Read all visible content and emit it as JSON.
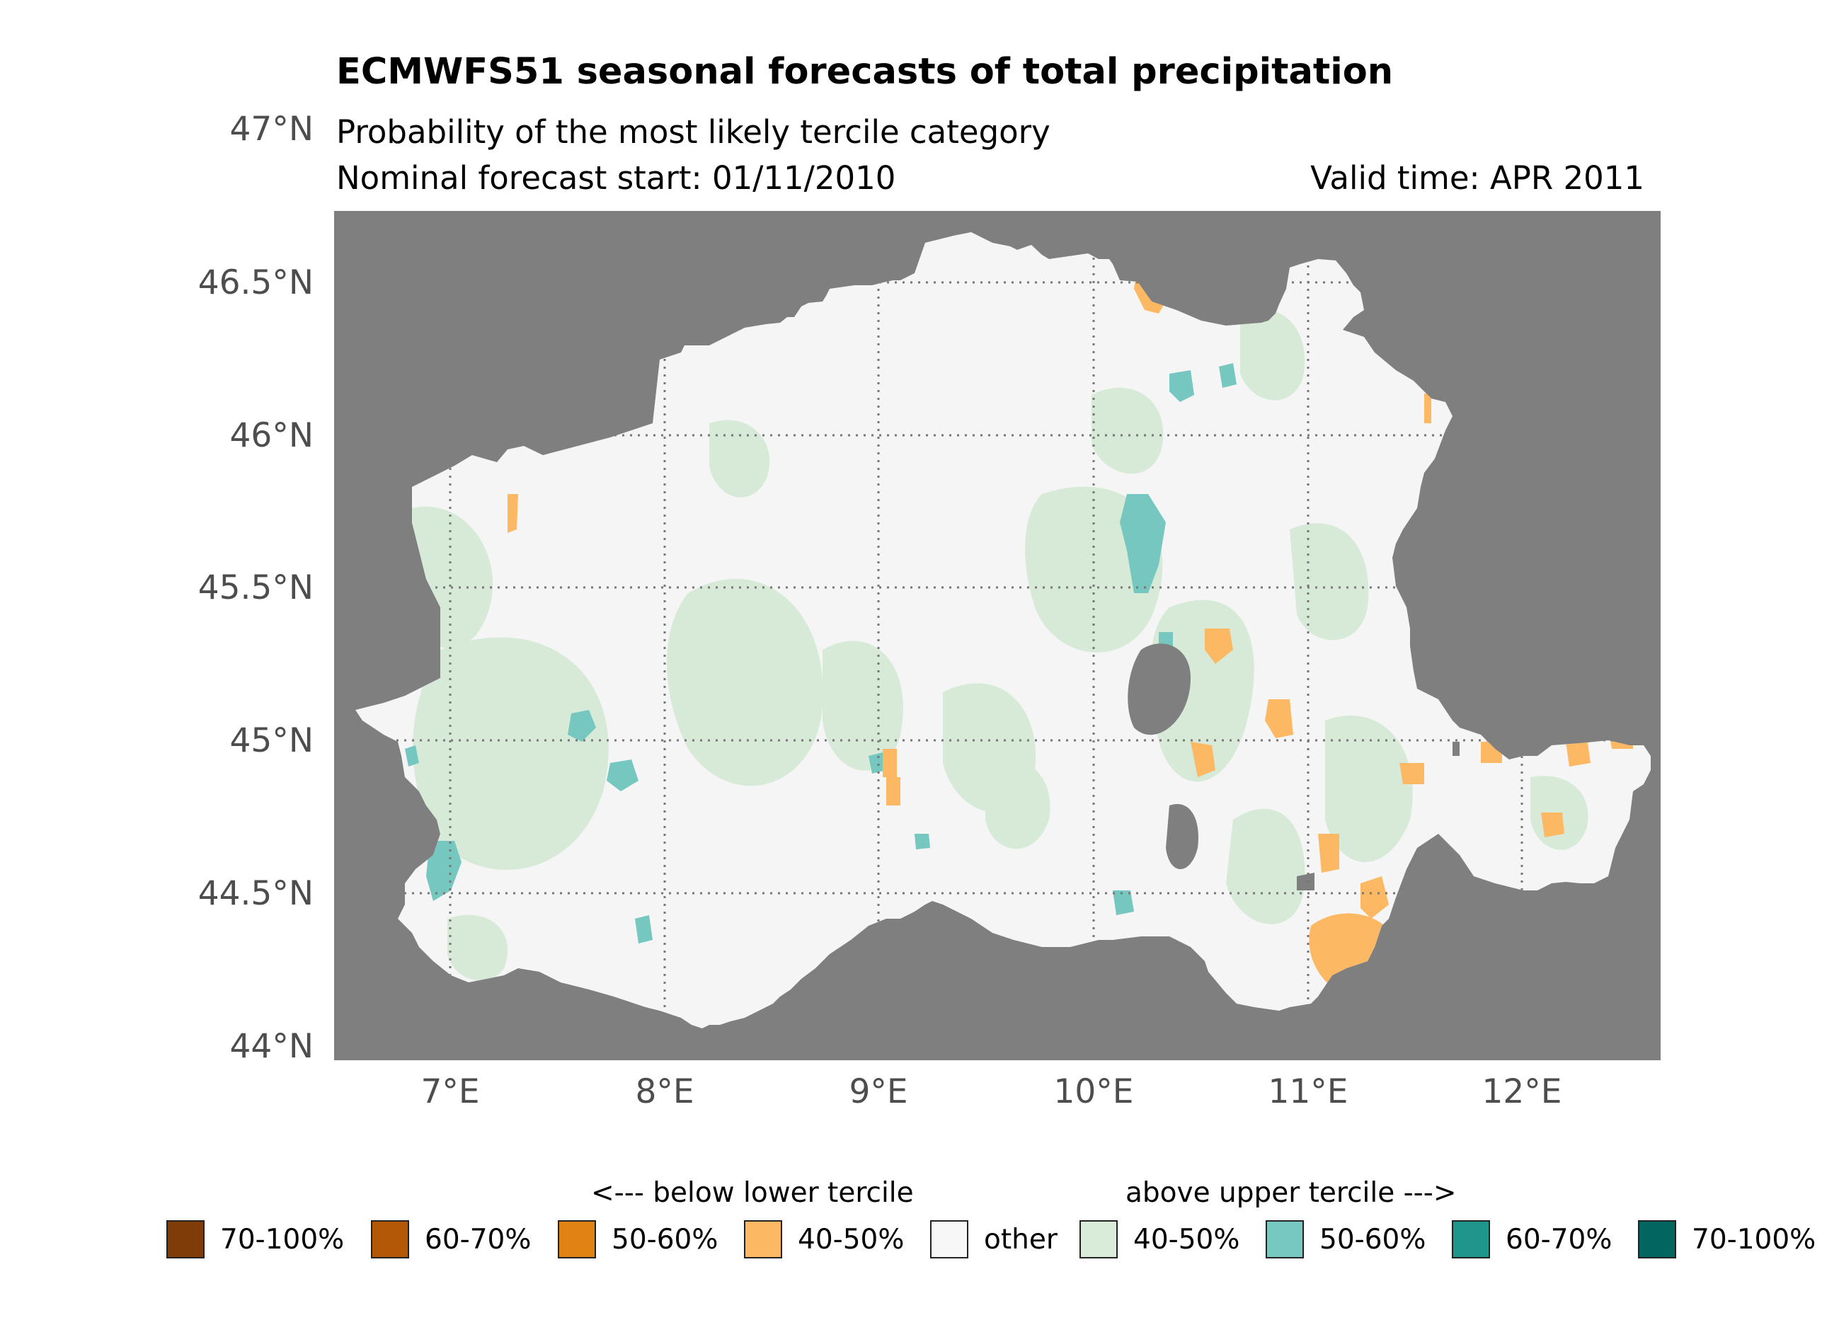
{
  "header": {
    "title": "ECMWFS51 seasonal forecasts of total precipitation",
    "subtitle": "Probability of the most likely tercile category",
    "forecast_start": "Nominal forecast start: 01/11/2010",
    "valid_time": "Valid time: APR 2011"
  },
  "axes": {
    "lat_labels": [
      "47°N",
      "46.5°N",
      "46°N",
      "45.5°N",
      "45°N",
      "44.5°N",
      "44°N"
    ],
    "lon_labels": [
      "7°E",
      "8°E",
      "9°E",
      "10°E",
      "11°E",
      "12°E"
    ]
  },
  "colors": {
    "ocean": "#7f7f7f",
    "other": "#f5f5f5",
    "above_40_50": "#d7ead8",
    "above_50_60": "#75c7c0",
    "above_60_70": "#1f968b",
    "above_70_100": "#01665e",
    "below_40_50": "#fdb863",
    "below_50_60": "#e08214",
    "below_60_70": "#b35806",
    "below_70_100": "#7f3b08"
  },
  "legend": {
    "below_heading": "<--- below lower tercile",
    "above_heading": "above upper tercile --->",
    "items": [
      {
        "label": "70-100%",
        "color": "#7f3b08"
      },
      {
        "label": "60-70%",
        "color": "#b35806"
      },
      {
        "label": "50-60%",
        "color": "#e08214"
      },
      {
        "label": "40-50%",
        "color": "#fdb863"
      },
      {
        "label": "other",
        "color": "#f7f7f7"
      },
      {
        "label": "40-50%",
        "color": "#d8ecd9"
      },
      {
        "label": "50-60%",
        "color": "#76c8c0"
      },
      {
        "label": "60-70%",
        "color": "#1f968b"
      },
      {
        "label": "70-100%",
        "color": "#01665e"
      }
    ]
  }
}
